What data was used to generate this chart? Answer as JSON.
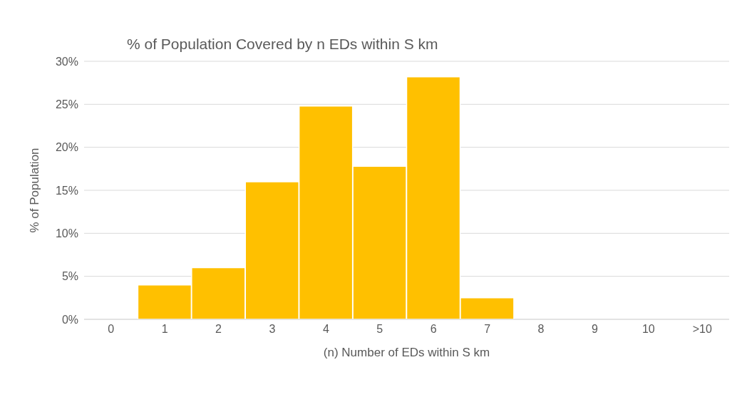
{
  "chart_data": {
    "type": "bar",
    "title": "% of Population Covered by n EDs within S km",
    "xlabel": "(n) Number of EDs within S km",
    "ylabel": "% of Population",
    "categories": [
      "0",
      "1",
      "2",
      "3",
      "4",
      "5",
      "6",
      "7",
      "8",
      "9",
      "10",
      ">10"
    ],
    "values": [
      0,
      4,
      6,
      16,
      24.8,
      17.8,
      28.2,
      2.5,
      0,
      0,
      0,
      0
    ],
    "color": "#ffc000",
    "ylim": [
      0,
      30
    ],
    "yticks": [
      {
        "value": 0,
        "label": "0%"
      },
      {
        "value": 5,
        "label": "5%"
      },
      {
        "value": 10,
        "label": "10%"
      },
      {
        "value": 15,
        "label": "15%"
      },
      {
        "value": 20,
        "label": "20%"
      },
      {
        "value": 25,
        "label": "25%"
      },
      {
        "value": 30,
        "label": "30%"
      }
    ],
    "grid": "y"
  }
}
